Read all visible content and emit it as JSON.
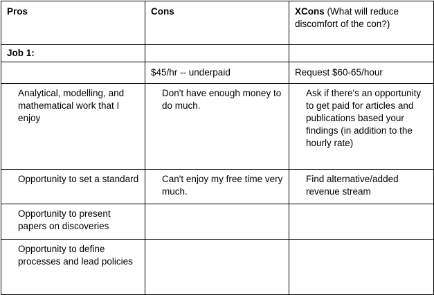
{
  "header": {
    "pros": "Pros",
    "cons": "Cons",
    "xcons_bold": "XCons",
    "xcons_rest": " (What will reduce discomfort of the con?)"
  },
  "job_label": "Job 1:",
  "rows": [
    {
      "pros": "",
      "cons": "$45/hr -- underpaid",
      "xcons": "Request $60-65/hour"
    },
    {
      "pros": "Analytical, modelling, and mathematical work that I enjoy",
      "cons": "Don't have enough money to do much.",
      "xcons": "Ask if there's an opportunity to get paid for articles and publications based your findings (in addition to the hourly rate)"
    },
    {
      "pros": "Opportunity to set a standard",
      "cons": "Can't enjoy my free time very much.",
      "xcons": "Find alternative/added revenue stream"
    },
    {
      "pros": "Opportunity to present papers on discoveries",
      "cons": "",
      "xcons": ""
    },
    {
      "pros": "Opportunity to define processes and lead policies",
      "cons": "",
      "xcons": ""
    }
  ]
}
